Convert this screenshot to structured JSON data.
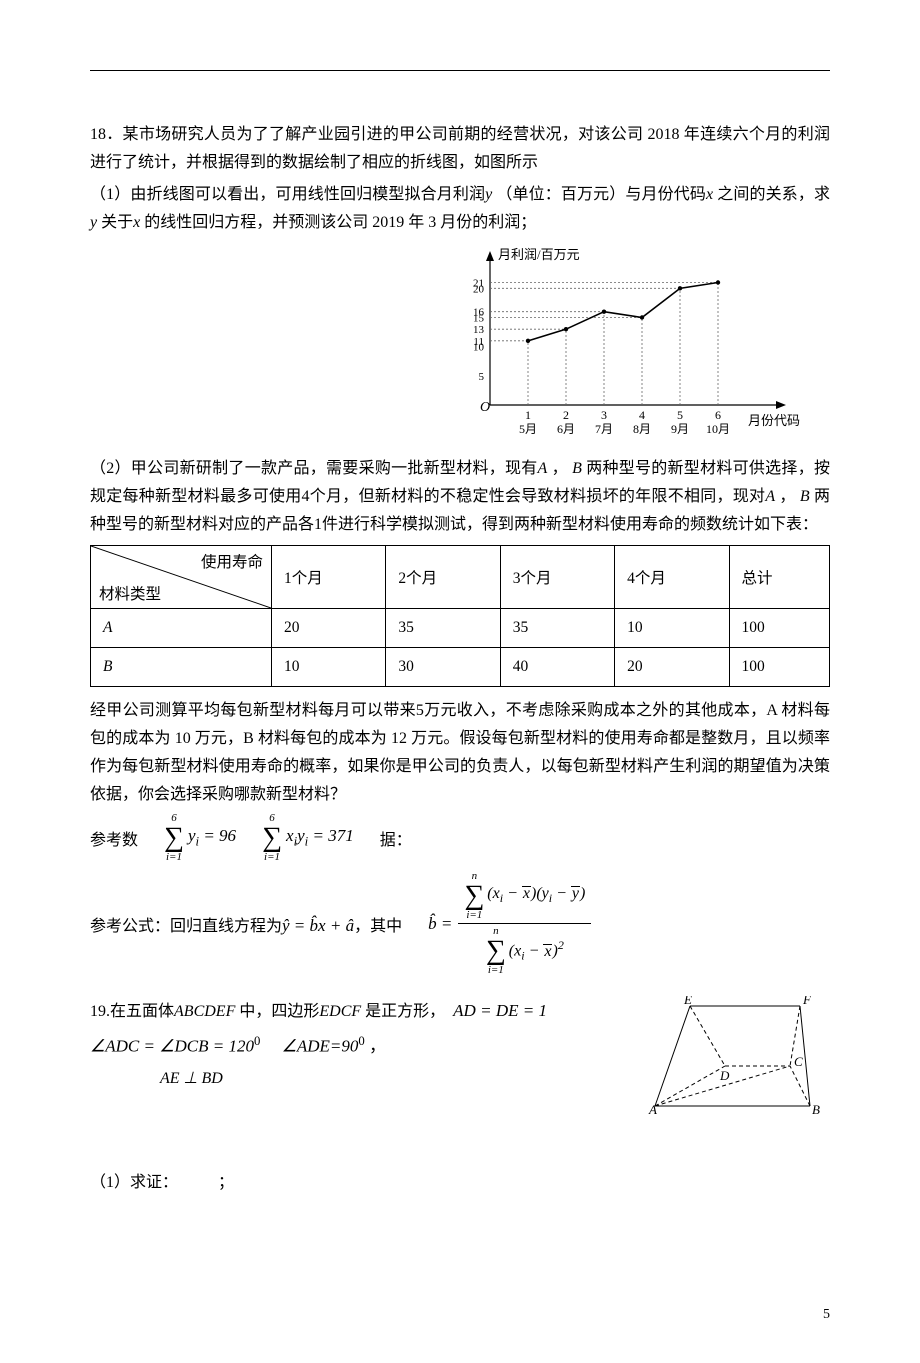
{
  "q18": {
    "intro_num": "18．",
    "intro_a": "某市场研究人员为了了解产业园引进的甲公司前期的经营状况，对该公司 2018 年连续六个月的利润进行了统计，并根据得到的数据绘制了相应的折线图，如图所示",
    "part1": "（1）由折线图可以看出，可用线性回归模型拟合月利润",
    "var_y": "y",
    "part1_mid": " （单位：百万元）与月份代码",
    "var_x": "x",
    "part1_mid2": "之间的关系，求",
    "part1_mid3": " 关于",
    "part1_end": " 的线性回归方程，并预测该公司 2019 年 3 月份的利润；",
    "chart": {
      "y_label": "月利润/百万元",
      "y_ticks": [
        "21",
        "20",
        "16",
        "15",
        "13",
        "11",
        "10",
        "5"
      ],
      "x_label": "月份代码",
      "x_ticks": [
        {
          "n": "1",
          "m": "5月"
        },
        {
          "n": "2",
          "m": "6月"
        },
        {
          "n": "3",
          "m": "7月"
        },
        {
          "n": "4",
          "m": "8月"
        },
        {
          "n": "5",
          "m": "9月"
        },
        {
          "n": "6",
          "m": "10月"
        }
      ],
      "origin": "O",
      "points": [
        [
          1,
          11
        ],
        [
          2,
          13
        ],
        [
          3,
          16
        ],
        [
          4,
          15
        ],
        [
          5,
          20
        ],
        [
          6,
          21
        ]
      ],
      "axis_color": "#000000",
      "line_color": "#000000",
      "dash_color": "#666666",
      "bg": "#ffffff"
    },
    "part2_a": "（2）甲公司新研制了一款产品，需要采购一批新型材料，现有",
    "varA": "A",
    "comma": " ， ",
    "varB": "B",
    "part2_b": " 两种型号的新型材料可供选择，按规定每种新型材料最多可使用",
    "four": "4",
    "part2_c": "个月，但新材料的不稳定性会导致材料损坏的年限不相同，现对",
    "part2_d": " 两种型号的新型材料对应的产品各",
    "one": "1",
    "part2_e": "件进行科学模拟测试，得到两种新型材料使用寿命的频数统计如下表：",
    "table": {
      "hdr_tl": "使用寿命",
      "hdr_bl": "材料类型",
      "cols": [
        "1个月",
        "2个月",
        "3个月",
        "4个月",
        "总计"
      ],
      "rows": [
        {
          "name": "A",
          "cells": [
            "20",
            "35",
            "35",
            "10",
            "100"
          ]
        },
        {
          "name": "B",
          "cells": [
            "10",
            "30",
            "40",
            "20",
            "100"
          ]
        }
      ]
    },
    "after_table_a": "经甲公司测算平均每包新型材料每月可以带来",
    "five": "5",
    "after_table_b": "万元收入，不考虑除采购成本之外的其他成本，A 材料每包的成本为 10 万元，B 材料每包的成本为 12 万元。假设每包新型材料的使用寿命都是整数月，且以频率作为每包新型材料使用寿命的概率，如果你是甲公司的负责人，以每包新型材料产生利润的期望值为决策依据，你会选择采购哪款新型材料？",
    "ref_data_label": "参考数",
    "ref_data_tail": "据：",
    "f1_upper": "6",
    "f1_lower": "i=1",
    "f1_body": "yᵢ = 96",
    "f2_body": "xᵢyᵢ = 371",
    "ref_formula_label": "参考公式：回归直线方程为",
    "yhat": "ŷ = b̂x + â",
    "mid": "，其中",
    "bhat_label": "b̂ =",
    "num_inside": "(xᵢ − x̄)(yᵢ − ȳ)",
    "den_inside": "(xᵢ − x̄)²",
    "n": "n"
  },
  "q19": {
    "intro_num": "19.",
    "intro_a": "在五面体",
    "solid": "ABCDEF",
    "intro_b": " 中，四边形",
    "quad": "EDCF",
    "intro_c": " 是正方形，",
    "eq1": "AD = DE = 1",
    "eq2": "∠ADC = ∠DCB = 120°",
    "eq3": "∠ADE=90°",
    "eq4": "AE ⊥ BD",
    "sep": " ，",
    "part1": "（1）求证：",
    "semi": "；",
    "labels": {
      "A": "A",
      "B": "B",
      "C": "C",
      "D": "D",
      "E": "E",
      "F": "F"
    }
  },
  "page_num": "5"
}
